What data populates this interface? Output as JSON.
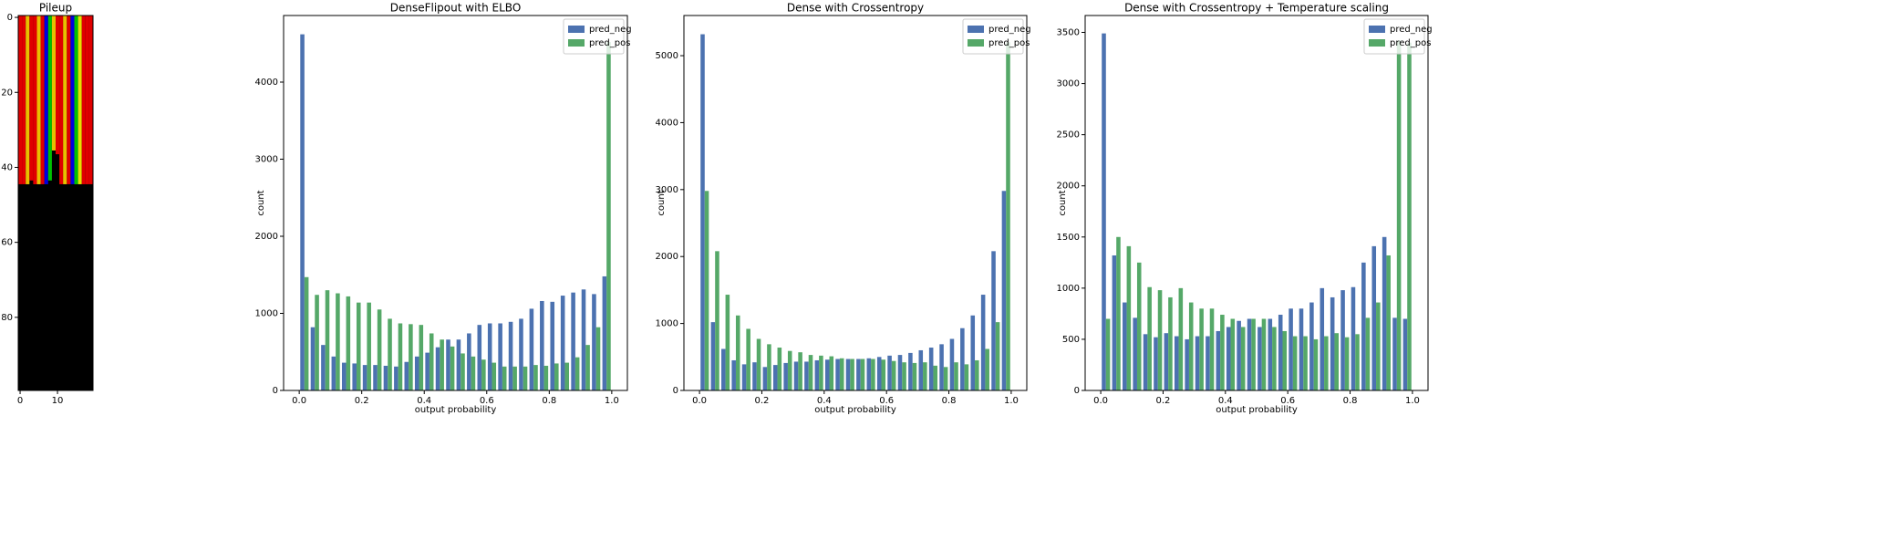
{
  "chart_data": [
    {
      "type": "image",
      "title": "Pileup",
      "xlim": [
        -0.5,
        19.5
      ],
      "ylim": [
        99.5,
        -0.5
      ],
      "xticks": [
        0,
        10
      ],
      "yticks": [
        0,
        20,
        40,
        60,
        80
      ],
      "background": "#000000",
      "column_colors": [
        "#e00000",
        "#e00000",
        "#e8c000",
        "#e00000",
        "#e00000",
        "#e8c000",
        "#e00000",
        "#0000e0",
        "#00c000",
        "#e8c000",
        "#e00000",
        "#e00000",
        "#e8c000",
        "#e00000",
        "#0000e0",
        "#00c000",
        "#e8e000",
        "#e00000",
        "#e00000",
        "#e00000"
      ],
      "colored_rows": [
        45,
        45,
        45,
        44,
        45,
        45,
        45,
        45,
        44,
        36,
        37,
        45,
        45,
        45,
        45,
        45,
        45,
        45,
        45,
        45
      ]
    },
    {
      "type": "histogram",
      "title": "DenseFlipout with ELBO",
      "xlabel": "output probability",
      "ylabel": "count",
      "bins": [
        0,
        0.0333,
        0.0667,
        0.1,
        0.1333,
        0.1667,
        0.2,
        0.2333,
        0.2667,
        0.3,
        0.3333,
        0.3667,
        0.4,
        0.4333,
        0.4667,
        0.5,
        0.5333,
        0.5667,
        0.6,
        0.6333,
        0.6667,
        0.7,
        0.7333,
        0.7667,
        0.8,
        0.8333,
        0.8667,
        0.9,
        0.9333,
        0.9667,
        1
      ],
      "series": [
        {
          "name": "pred_neg",
          "color": "#4c72b0",
          "values": [
            4620,
            820,
            590,
            440,
            360,
            350,
            330,
            330,
            320,
            310,
            370,
            440,
            490,
            560,
            660,
            660,
            740,
            850,
            870,
            870,
            890,
            930,
            1060,
            1160,
            1150,
            1230,
            1270,
            1310,
            1250,
            1480
          ]
        },
        {
          "name": "pred_pos",
          "color": "#55a868",
          "values": [
            1470,
            1240,
            1300,
            1260,
            1220,
            1140,
            1140,
            1050,
            930,
            870,
            860,
            850,
            740,
            660,
            570,
            480,
            440,
            400,
            360,
            310,
            310,
            310,
            330,
            320,
            350,
            360,
            430,
            590,
            820,
            4520
          ]
        }
      ],
      "xlim": [
        -0.05,
        1.05
      ],
      "ylim": [
        0,
        4864
      ],
      "xticks": [
        {
          "value": 0,
          "label": "0.0"
        },
        0.2,
        0.4,
        0.6,
        0.8,
        {
          "value": 1,
          "label": "1.0"
        }
      ],
      "yticks": [
        0,
        1000,
        2000,
        3000,
        4000
      ],
      "legend": "upper right"
    },
    {
      "type": "histogram",
      "title": "Dense with Crossentropy",
      "xlabel": "output probability",
      "ylabel": "count",
      "bins": [
        0,
        0.0333,
        0.0667,
        0.1,
        0.1333,
        0.1667,
        0.2,
        0.2333,
        0.2667,
        0.3,
        0.3333,
        0.3667,
        0.4,
        0.4333,
        0.4667,
        0.5,
        0.5333,
        0.5667,
        0.6,
        0.6333,
        0.6667,
        0.7,
        0.7333,
        0.7667,
        0.8,
        0.8333,
        0.8667,
        0.9,
        0.9333,
        0.9667,
        1
      ],
      "series": [
        {
          "name": "pred_neg",
          "color": "#4c72b0",
          "values": [
            5320,
            1020,
            620,
            450,
            390,
            420,
            350,
            380,
            410,
            430,
            430,
            450,
            460,
            470,
            470,
            470,
            480,
            500,
            520,
            530,
            560,
            600,
            640,
            690,
            770,
            930,
            1120,
            1430,
            2080,
            2980
          ]
        },
        {
          "name": "pred_pos",
          "color": "#55a868",
          "values": [
            2980,
            2080,
            1430,
            1120,
            920,
            770,
            690,
            640,
            590,
            570,
            530,
            520,
            510,
            480,
            470,
            470,
            470,
            460,
            440,
            420,
            410,
            420,
            370,
            350,
            420,
            390,
            450,
            620,
            1020,
            5200
          ]
        }
      ],
      "xlim": [
        -0.05,
        1.05
      ],
      "ylim": [
        0,
        5600
      ],
      "xticks": [
        {
          "value": 0,
          "label": "0.0"
        },
        0.2,
        0.4,
        0.6,
        0.8,
        {
          "value": 1,
          "label": "1.0"
        }
      ],
      "yticks": [
        0,
        1000,
        2000,
        3000,
        4000,
        5000
      ],
      "legend": "upper right"
    },
    {
      "type": "histogram",
      "title": "Dense with Crossentropy + Temperature scaling",
      "xlabel": "output probability",
      "ylabel": "count",
      "bins": [
        0,
        0.0333,
        0.0667,
        0.1,
        0.1333,
        0.1667,
        0.2,
        0.2333,
        0.2667,
        0.3,
        0.3333,
        0.3667,
        0.4,
        0.4333,
        0.4667,
        0.5,
        0.5333,
        0.5667,
        0.6,
        0.6333,
        0.6667,
        0.7,
        0.7333,
        0.7667,
        0.8,
        0.8333,
        0.8667,
        0.9,
        0.9333,
        0.9667,
        1
      ],
      "series": [
        {
          "name": "pred_neg",
          "color": "#4c72b0",
          "values": [
            3490,
            1320,
            860,
            710,
            550,
            520,
            560,
            530,
            500,
            530,
            530,
            580,
            620,
            680,
            700,
            620,
            700,
            740,
            800,
            800,
            860,
            1000,
            910,
            980,
            1010,
            1250,
            1410,
            1500,
            710,
            700
          ]
        },
        {
          "name": "pred_pos",
          "color": "#55a868",
          "values": [
            700,
            1500,
            1410,
            1250,
            1010,
            980,
            910,
            1000,
            860,
            800,
            800,
            740,
            700,
            620,
            700,
            700,
            620,
            580,
            530,
            530,
            500,
            530,
            560,
            520,
            550,
            710,
            860,
            1320,
            3420,
            3400
          ]
        }
      ],
      "xlim": [
        -0.05,
        1.05
      ],
      "ylim": [
        0,
        3665
      ],
      "xticks": [
        {
          "value": 0,
          "label": "0.0"
        },
        0.2,
        0.4,
        0.6,
        0.8,
        {
          "value": 1,
          "label": "1.0"
        }
      ],
      "yticks": [
        0,
        500,
        1000,
        1500,
        2000,
        2500,
        3000,
        3500
      ],
      "legend": "upper right"
    }
  ]
}
